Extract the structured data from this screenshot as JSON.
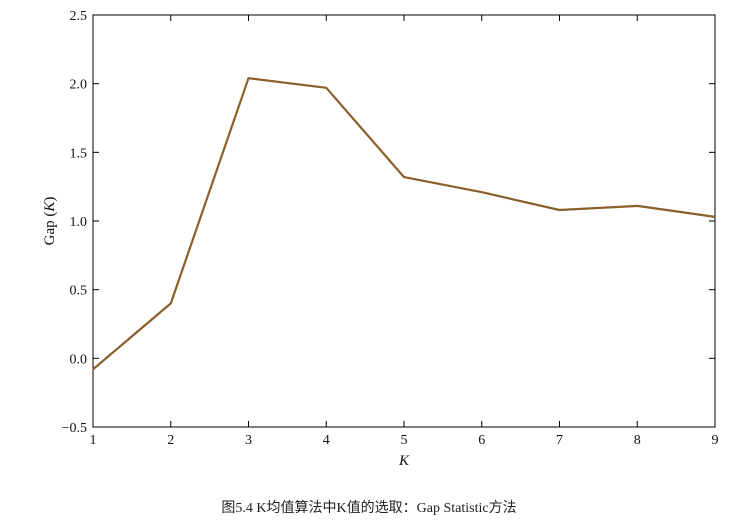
{
  "chart_data": {
    "type": "line",
    "title": "",
    "xlabel": "K",
    "ylabel_prefix": "Gap (",
    "ylabel_var": "K",
    "ylabel_suffix": ")",
    "x": [
      1,
      2,
      3,
      4,
      5,
      6,
      7,
      8,
      9
    ],
    "series": [
      {
        "values": [
          -0.08,
          0.4,
          2.04,
          1.97,
          1.32,
          1.21,
          1.08,
          1.11,
          1.03
        ]
      }
    ],
    "xlim": [
      1,
      9
    ],
    "ylim": [
      -0.5,
      2.5
    ],
    "xticks": [
      "1",
      "2",
      "3",
      "4",
      "5",
      "6",
      "7",
      "8",
      "9"
    ],
    "yticks": [
      -0.5,
      0.0,
      0.5,
      1.0,
      1.5,
      2.0,
      2.5
    ],
    "ytick_labels": [
      "−0.5",
      "0.0",
      "0.5",
      "1.0",
      "1.5",
      "2.0",
      "2.5"
    ],
    "line_color": "#8b5e2a",
    "grid": false,
    "legend": "none"
  },
  "caption": "图5.4 K均值算法中K值的选取：Gap Statistic方法"
}
